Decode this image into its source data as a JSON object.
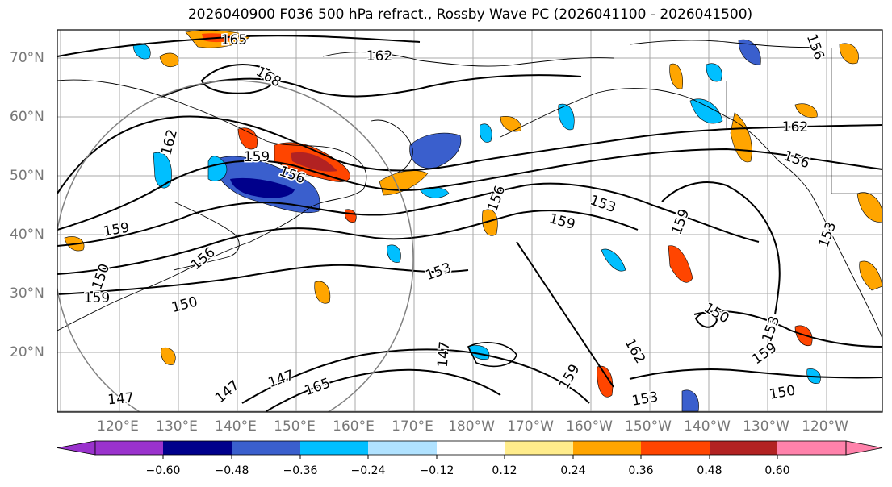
{
  "title": "2026040900 F036 500 hPa refract., Rossby Wave PC (2026041100 - 2026041500)",
  "latitude_labels": [
    "70°N",
    "60°N",
    "50°N",
    "40°N",
    "30°N",
    "20°N"
  ],
  "longitude_labels": [
    "120°E",
    "130°E",
    "140°E",
    "150°E",
    "160°E",
    "170°E",
    "180°W",
    "170°W",
    "160°W",
    "150°W",
    "140°W",
    "130°W",
    "120°W"
  ],
  "contour_labels": [
    "165",
    "168",
    "162",
    "159",
    "156",
    "162",
    "156",
    "153",
    "159",
    "156",
    "159",
    "153",
    "150",
    "150",
    "150",
    "153",
    "147",
    "147",
    "147",
    "162",
    "153",
    "150",
    "159",
    "153",
    "159",
    "159",
    "156",
    "162",
    "156",
    "165",
    "147",
    "159"
  ],
  "colorbar": {
    "tick_labels": [
      "−0.60",
      "−0.48",
      "−0.36",
      "−0.24",
      "−0.12",
      "0.12",
      "0.24",
      "0.36",
      "0.48",
      "0.60"
    ],
    "colors": [
      "#9a32cd",
      "#00008b",
      "#3a5fcd",
      "#00bfff",
      "#b0e2ff",
      "#ffffff",
      "#ffec8b",
      "#ffa500",
      "#ff4500",
      "#b22222",
      "#ff82ab"
    ]
  },
  "colors": {
    "coast": "#000000",
    "grid": "#a9a9a9",
    "circle": "#808080"
  }
}
